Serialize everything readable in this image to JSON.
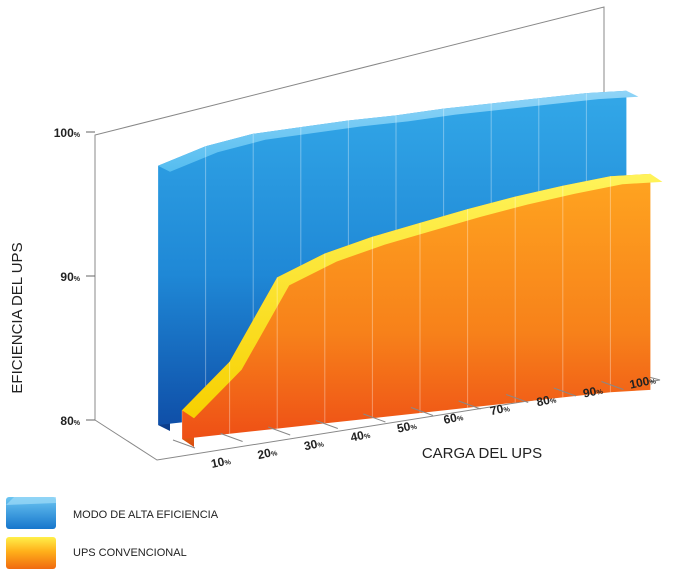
{
  "chart_data": {
    "type": "area",
    "xlabel": "CARGA DEL UPS",
    "ylabel": "EFICIENCIA DEL UPS",
    "ylim": [
      80,
      100
    ],
    "y_ticks": [
      {
        "value": 80,
        "num": "80",
        "unit": "%"
      },
      {
        "value": 90,
        "num": "90",
        "unit": "%"
      },
      {
        "value": 100,
        "num": "100",
        "unit": "%"
      }
    ],
    "categories": [
      {
        "num": "10",
        "unit": "%"
      },
      {
        "num": "20",
        "unit": "%"
      },
      {
        "num": "30",
        "unit": "%"
      },
      {
        "num": "40",
        "unit": "%"
      },
      {
        "num": "50",
        "unit": "%"
      },
      {
        "num": "60",
        "unit": "%"
      },
      {
        "num": "70",
        "unit": "%"
      },
      {
        "num": "80",
        "unit": "%"
      },
      {
        "num": "90",
        "unit": "%"
      },
      {
        "num": "100",
        "unit": "%"
      }
    ],
    "series": [
      {
        "name": "MODO DE ALTA EFICIENCIA",
        "color": "#2a9fe0",
        "values": [
          98,
          99,
          99.5,
          99.6,
          99.7,
          99.7,
          99.8,
          99.8,
          99.8,
          99.8
        ]
      },
      {
        "name": "UPS CONVENCIONAL",
        "color": "#f7941d",
        "values": [
          82,
          85,
          90.5,
          91.8,
          92.6,
          93.2,
          93.8,
          94.3,
          94.7,
          95
        ]
      }
    ],
    "legend_position": "bottom-left",
    "grid": true
  }
}
